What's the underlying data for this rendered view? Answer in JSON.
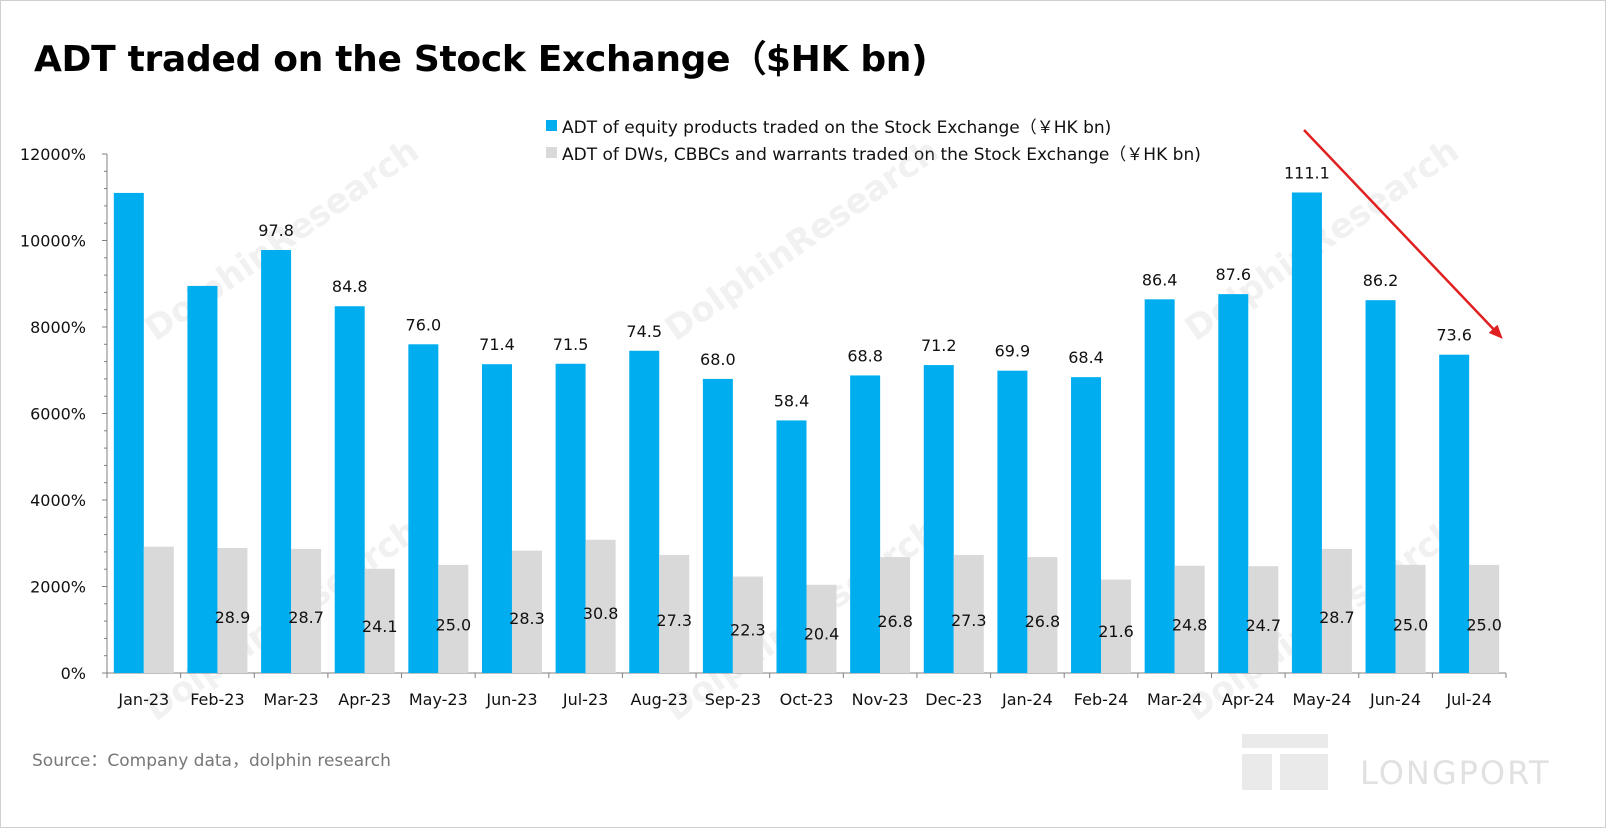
{
  "title": "ADT traded on the Stock Exchange（$HK bn)",
  "source": "Source：Company data，dolphin research",
  "watermark_text": "DolphinResearch",
  "logo_text": "LONGPORT",
  "colors": {
    "equity": "#00AEEF",
    "warrants": "#D9D9D9",
    "arrow": "#E02020",
    "axis": "#808080"
  },
  "chart_data": {
    "type": "bar",
    "title": "ADT traded on the Stock Exchange（$HK bn)",
    "categories": [
      "Jan-23",
      "Feb-23",
      "Mar-23",
      "Apr-23",
      "May-23",
      "Jun-23",
      "Jul-23",
      "Aug-23",
      "Sep-23",
      "Oct-23",
      "Nov-23",
      "Dec-23",
      "Jan-24",
      "Feb-24",
      "Mar-24",
      "Apr-24",
      "May-24",
      "Jun-24",
      "Jul-24"
    ],
    "series": [
      {
        "name": "ADT of equity products traded on the Stock Exchange（￥HK bn)",
        "values": [
          111.0,
          89.5,
          97.8,
          84.8,
          76.0,
          71.4,
          71.5,
          74.5,
          68.0,
          58.4,
          68.8,
          71.2,
          69.9,
          68.4,
          86.4,
          87.6,
          111.1,
          86.2,
          73.6
        ],
        "labels": [
          "",
          "",
          "97.8",
          "84.8",
          "76.0",
          "71.4",
          "71.5",
          "74.5",
          "68.0",
          "58.4",
          "68.8",
          "71.2",
          "69.9",
          "68.4",
          "86.4",
          "87.6",
          "111.1",
          "86.2",
          "73.6"
        ]
      },
      {
        "name": "ADT of DWs, CBBCs and warrants traded on the Stock Exchange（￥HK bn)",
        "values": [
          29.2,
          28.9,
          28.7,
          24.1,
          25.0,
          28.3,
          30.8,
          27.3,
          22.3,
          20.4,
          26.8,
          27.3,
          26.8,
          21.6,
          24.8,
          24.7,
          28.7,
          25.0,
          25.0
        ],
        "labels": [
          "",
          "28.9",
          "28.7",
          "24.1",
          "25.0",
          "28.3",
          "30.8",
          "27.3",
          "22.3",
          "20.4",
          "26.8",
          "27.3",
          "26.8",
          "21.6",
          "24.8",
          "24.7",
          "28.7",
          "25.0",
          "25.0"
        ]
      }
    ],
    "yticks": [
      "0%",
      "2000%",
      "4000%",
      "6000%",
      "8000%",
      "10000%",
      "12000%"
    ],
    "ylim": [
      0,
      120
    ],
    "grid": false,
    "legend": "top-center"
  }
}
